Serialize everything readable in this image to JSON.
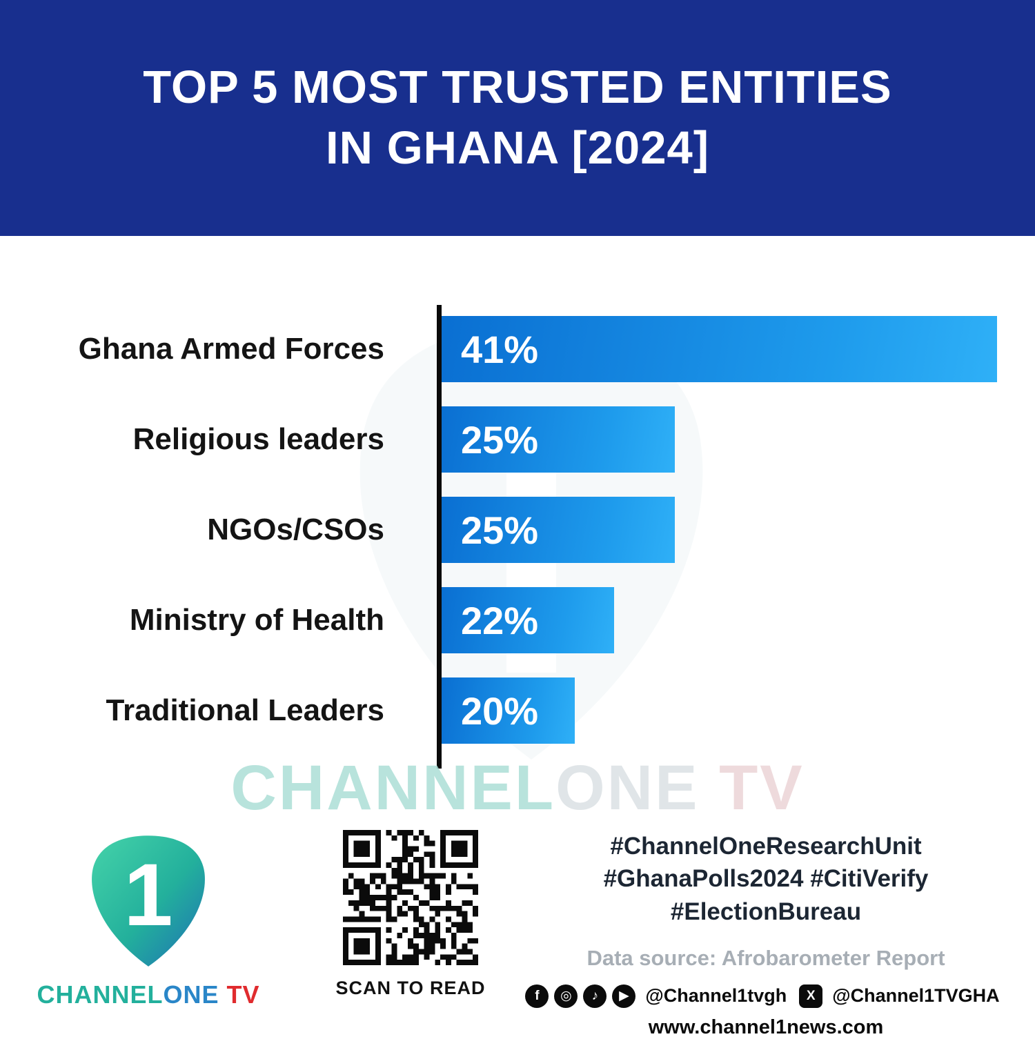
{
  "header": {
    "title_line1": "TOP 5 MOST TRUSTED ENTITIES",
    "title_line2": "IN GHANA [2024]"
  },
  "chart_data": {
    "type": "bar",
    "orientation": "horizontal",
    "title": "Top 5 Most Trusted Entities in Ghana [2024]",
    "categories": [
      "Ghana Armed Forces",
      "Religious leaders",
      "NGOs/CSOs",
      "Ministry of Health",
      "Traditional Leaders"
    ],
    "values": [
      41,
      25,
      25,
      22,
      20
    ],
    "value_labels": [
      "41%",
      "25%",
      "25%",
      "22%",
      "20%"
    ],
    "xlabel": "",
    "ylabel": "",
    "legend": "none",
    "grid": "off",
    "bar_color_start": "#0a6fd2",
    "bar_color_end": "#2fb0f7",
    "axis_color": "#0a0a0a",
    "display_widths_pct": [
      100,
      42,
      42,
      31,
      24
    ]
  },
  "watermark": {
    "part1": "CHANNEL",
    "part2": "ONE ",
    "part3": "TV"
  },
  "footer": {
    "logo": {
      "one_glyph": "1",
      "brand_channel": "CHANNEL",
      "brand_one": "ONE",
      "brand_tv": " TV"
    },
    "qr_caption": "SCAN TO READ",
    "hashtags": [
      "#ChannelOneResearchUnit",
      "#GhanaPolls2024 #CitiVerify",
      "#ElectionBureau"
    ],
    "data_source": "Data source: Afrobarometer Report",
    "social": {
      "facebook_glyph": "f",
      "instagram_glyph": "◎",
      "tiktok_glyph": "♪",
      "youtube_glyph": "▶",
      "handle_1": "@Channel1tvgh",
      "x_glyph": "X",
      "handle_2": "@Channel1TVGHA"
    },
    "website": "www.channel1news.com"
  },
  "colors": {
    "header_bg": "#182f8e",
    "brand_teal": "#23b09c",
    "brand_blue": "#2a86c8",
    "brand_red": "#e02b2e"
  }
}
